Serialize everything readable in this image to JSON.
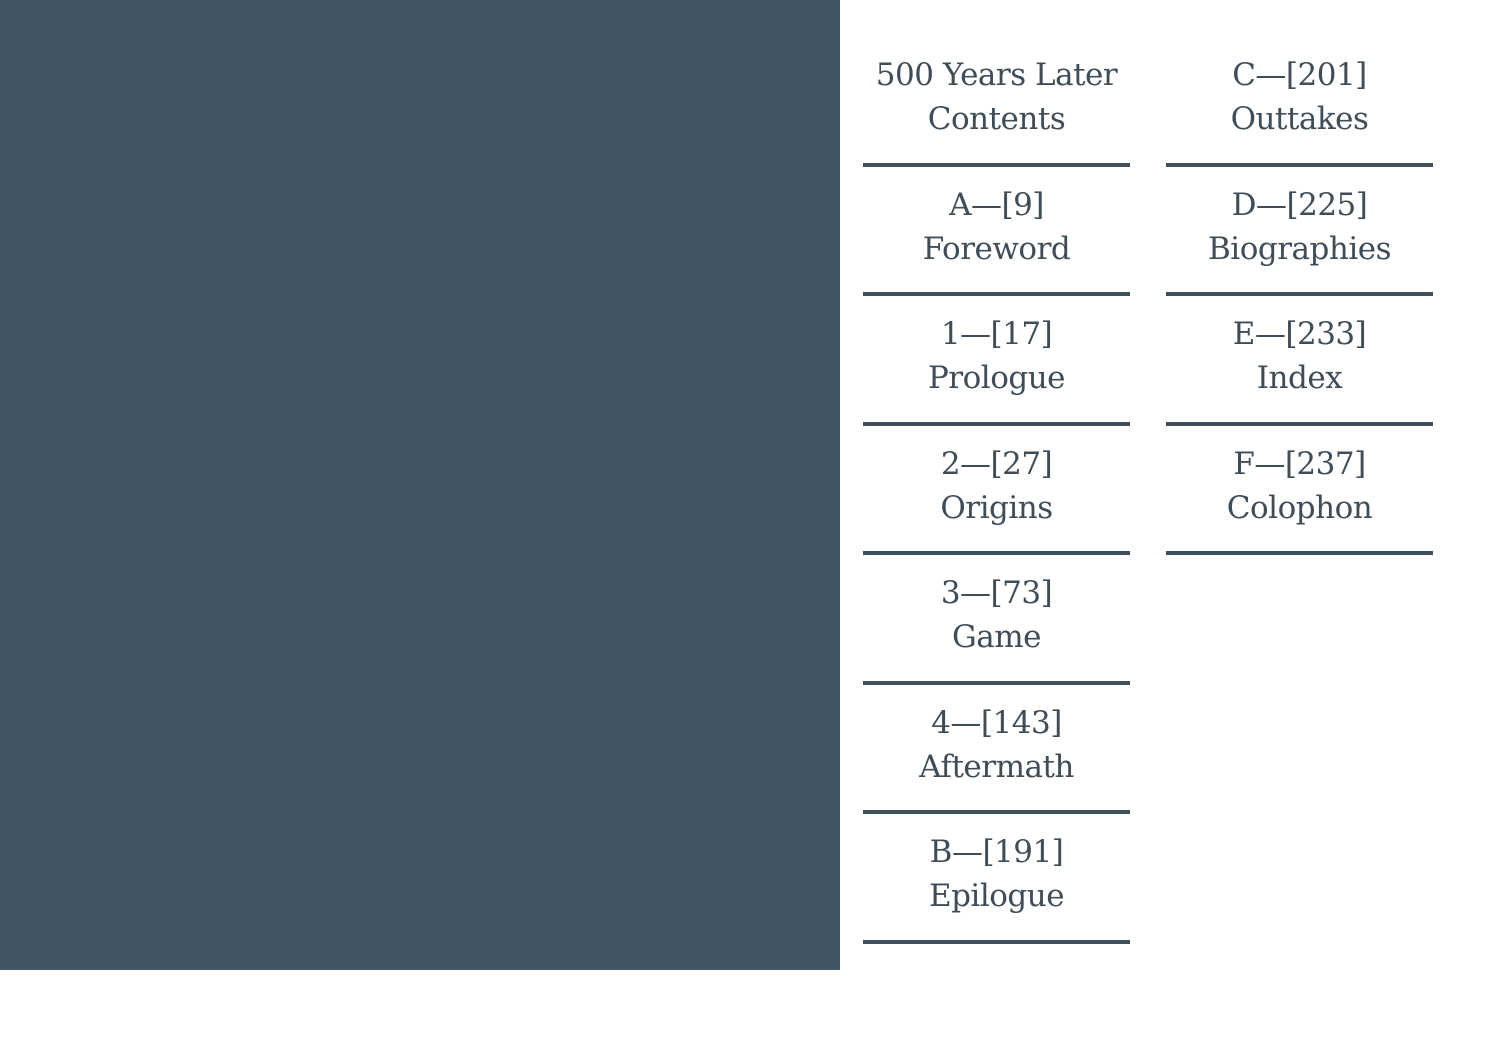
{
  "colors": {
    "panel": "#415565",
    "text": "#3f4d59",
    "rule": "#3f505d"
  },
  "contents": {
    "left": [
      {
        "line1": "500 Years Later",
        "line2": "Contents"
      },
      {
        "line1": "A—[9]",
        "line2": "Foreword"
      },
      {
        "line1": "1—[17]",
        "line2": "Prologue"
      },
      {
        "line1": "2—[27]",
        "line2": "Origins"
      },
      {
        "line1": "3—[73]",
        "line2": "Game"
      },
      {
        "line1": "4—[143]",
        "line2": "Aftermath"
      },
      {
        "line1": "B—[191]",
        "line2": "Epilogue"
      }
    ],
    "right": [
      {
        "line1": "C—[201]",
        "line2": "Outtakes"
      },
      {
        "line1": "D—[225]",
        "line2": "Biographies"
      },
      {
        "line1": "E—[233]",
        "line2": "Index"
      },
      {
        "line1": "F—[237]",
        "line2": "Colophon"
      }
    ]
  }
}
